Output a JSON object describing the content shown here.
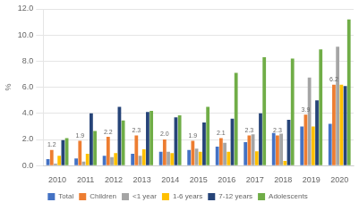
{
  "chart_data": {
    "type": "bar",
    "ylabel": "%",
    "categories": [
      "2010",
      "2011",
      "2012",
      "2013",
      "2014",
      "2015",
      "2016",
      "2017",
      "2018",
      "2019",
      "2020"
    ],
    "series": [
      {
        "name": "Total",
        "color": "#4472c4",
        "values": [
          0.5,
          0.55,
          0.75,
          0.9,
          1.05,
          1.2,
          1.45,
          1.8,
          2.5,
          3.0,
          3.2
        ]
      },
      {
        "name": "Children",
        "color": "#ed7d31",
        "values": [
          1.2,
          1.9,
          2.2,
          2.3,
          2.0,
          1.9,
          2.1,
          2.3,
          2.3,
          3.9,
          6.2
        ],
        "data_labels": true,
        "value_labels": [
          "1.2",
          "1.9",
          "2.2",
          "2.3",
          "2.0",
          "1.9",
          "2.1",
          "2.3",
          "2.3",
          "3.9",
          "6.2"
        ]
      },
      {
        "name": "<1 year",
        "color": "#a5a5a5",
        "values": [
          0.15,
          0.3,
          0.65,
          0.75,
          1.05,
          1.3,
          1.75,
          2.4,
          2.45,
          6.75,
          9.1
        ]
      },
      {
        "name": "1-6 years",
        "color": "#ffc000",
        "values": [
          0.75,
          0.9,
          0.95,
          1.25,
          0.95,
          1.05,
          1.05,
          1.1,
          0.35,
          3.0,
          6.2
        ]
      },
      {
        "name": "7-12 years",
        "color": "#264478",
        "values": [
          1.95,
          4.0,
          4.5,
          4.1,
          3.7,
          3.3,
          3.6,
          4.0,
          3.5,
          5.0,
          6.1
        ]
      },
      {
        "name": "Adolescents",
        "color": "#70ad47",
        "values": [
          2.1,
          2.65,
          3.45,
          4.2,
          3.85,
          4.5,
          7.1,
          8.3,
          8.2,
          8.9,
          11.2
        ]
      }
    ],
    "ylim": [
      0,
      12.0
    ],
    "yticks": [
      {
        "value": 0,
        "label": "0.0"
      },
      {
        "value": 2,
        "label": "2.0"
      },
      {
        "value": 4,
        "label": "4.0"
      },
      {
        "value": 6,
        "label": "6.0"
      },
      {
        "value": 8,
        "label": "8.0"
      },
      {
        "value": 10,
        "label": "10.0"
      },
      {
        "value": 12,
        "label": "12.0"
      }
    ],
    "grid": true,
    "legend": "bottom"
  }
}
